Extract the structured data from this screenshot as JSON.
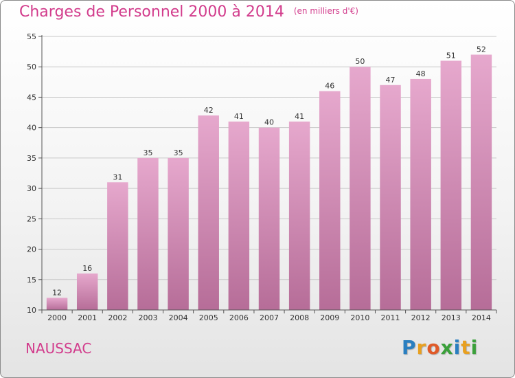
{
  "header": {
    "title": "Charges de Personnel 2000 à 2014",
    "subtitle": "(en milliers d'€)"
  },
  "footer": {
    "commune": "NAUSSAC",
    "logo_letters": [
      "P",
      "r",
      "o",
      "x",
      "i",
      "t",
      "i"
    ],
    "logo_colors": [
      "#2a7fc0",
      "#e8a020",
      "#e05a28",
      "#3aa03a",
      "#2a7fc0",
      "#e8a020",
      "#3aa03a"
    ]
  },
  "colors": {
    "accent": "#d23c8c",
    "bar_top": "#e6a8cd",
    "bar_bottom": "#b66d98",
    "axis": "#555555",
    "gridline": "#c8c8c8"
  },
  "chart_data": {
    "type": "bar",
    "title": "Charges de Personnel 2000 à 2014",
    "subtitle": "(en milliers d'€)",
    "categories": [
      "2000",
      "2001",
      "2002",
      "2003",
      "2004",
      "2005",
      "2006",
      "2007",
      "2008",
      "2009",
      "2010",
      "2011",
      "2012",
      "2013",
      "2014"
    ],
    "values": [
      12,
      16,
      31,
      35,
      35,
      42,
      41,
      40,
      41,
      46,
      50,
      47,
      48,
      51,
      52
    ],
    "ylim": [
      10,
      55
    ],
    "yticks": [
      10,
      15,
      20,
      25,
      30,
      35,
      40,
      45,
      50,
      55
    ],
    "grid": true,
    "xlabel": "",
    "ylabel": ""
  }
}
